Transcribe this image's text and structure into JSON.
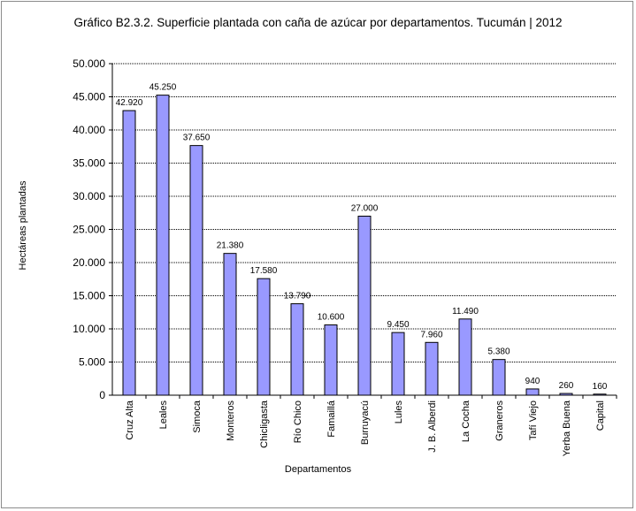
{
  "chart_data": {
    "type": "bar",
    "title": "Gráfico B2.3.2. Superficie plantada con caña de azúcar por departamentos. Tucumán | 2012",
    "xlabel": "Departamentos",
    "ylabel": "Hectáreas plantadas",
    "ylim": [
      0,
      50000
    ],
    "yticks": [
      0,
      5000,
      10000,
      15000,
      20000,
      25000,
      30000,
      35000,
      40000,
      45000,
      50000
    ],
    "ytick_labels": [
      "0",
      "5.000",
      "10.000",
      "15.000",
      "20.000",
      "25.000",
      "30.000",
      "35.000",
      "40.000",
      "45.000",
      "50.000"
    ],
    "grid": "horizontal-dotted",
    "legend": "none",
    "bar_color": "#9999ff",
    "categories": [
      "Cruz Alta",
      "Leales",
      "Simoca",
      "Monteros",
      "Chicligasta",
      "Río Chico",
      "Famaillá",
      "Burruyacú",
      "Lules",
      "J. B. Alberdi",
      "La Cocha",
      "Graneros",
      "Tafí Viejo",
      "Yerba Buena",
      "Capital"
    ],
    "values": [
      42920,
      45250,
      37650,
      21380,
      17580,
      13790,
      10600,
      27000,
      9450,
      7960,
      11490,
      5380,
      940,
      260,
      160
    ],
    "data_labels": [
      "42.920",
      "45.250",
      "37.650",
      "21.380",
      "17.580",
      "13.790",
      "10.600",
      "27.000",
      "9.450",
      "7.960",
      "11.490",
      "5.380",
      "940",
      "260",
      "160"
    ]
  }
}
